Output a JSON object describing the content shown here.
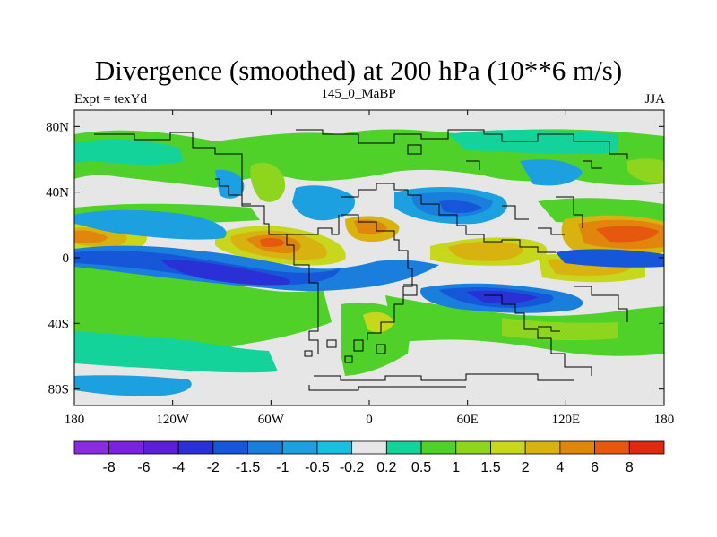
{
  "title": "Divergence (smoothed) at 200 hPa (10**6 m/s)",
  "subtitle_left": "Expt = texYd",
  "subtitle_center": "145_0_MaBP",
  "subtitle_right": "JJA",
  "map": {
    "x_ticks": [
      "180",
      "120W",
      "60W",
      "0",
      "60E",
      "120E",
      "180"
    ],
    "y_ticks": [
      "80N",
      "40N",
      "0",
      "40S",
      "80S"
    ],
    "lon_range": [
      -180,
      180
    ],
    "lat_range": [
      -90,
      90
    ]
  },
  "colorbar": {
    "labels": [
      "-8",
      "-6",
      "-4",
      "-2",
      "-1.5",
      "-1",
      "-0.5",
      "-0.2",
      "0.2",
      "0.5",
      "1",
      "1.5",
      "2",
      "4",
      "6",
      "8"
    ],
    "colors": [
      "#8a2be2",
      "#7a22dd",
      "#5d1fd6",
      "#2a2fd6",
      "#1656d8",
      "#1a7fdc",
      "#1ca0e0",
      "#18bfe0",
      "#e6e6e6",
      "#14d39a",
      "#4fd12a",
      "#8ed51e",
      "#c7d71c",
      "#d8b20e",
      "#e0860c",
      "#e5580e",
      "#e02a10"
    ]
  },
  "colors": {
    "background": "#e6e6e6",
    "coastline": "#000000"
  }
}
